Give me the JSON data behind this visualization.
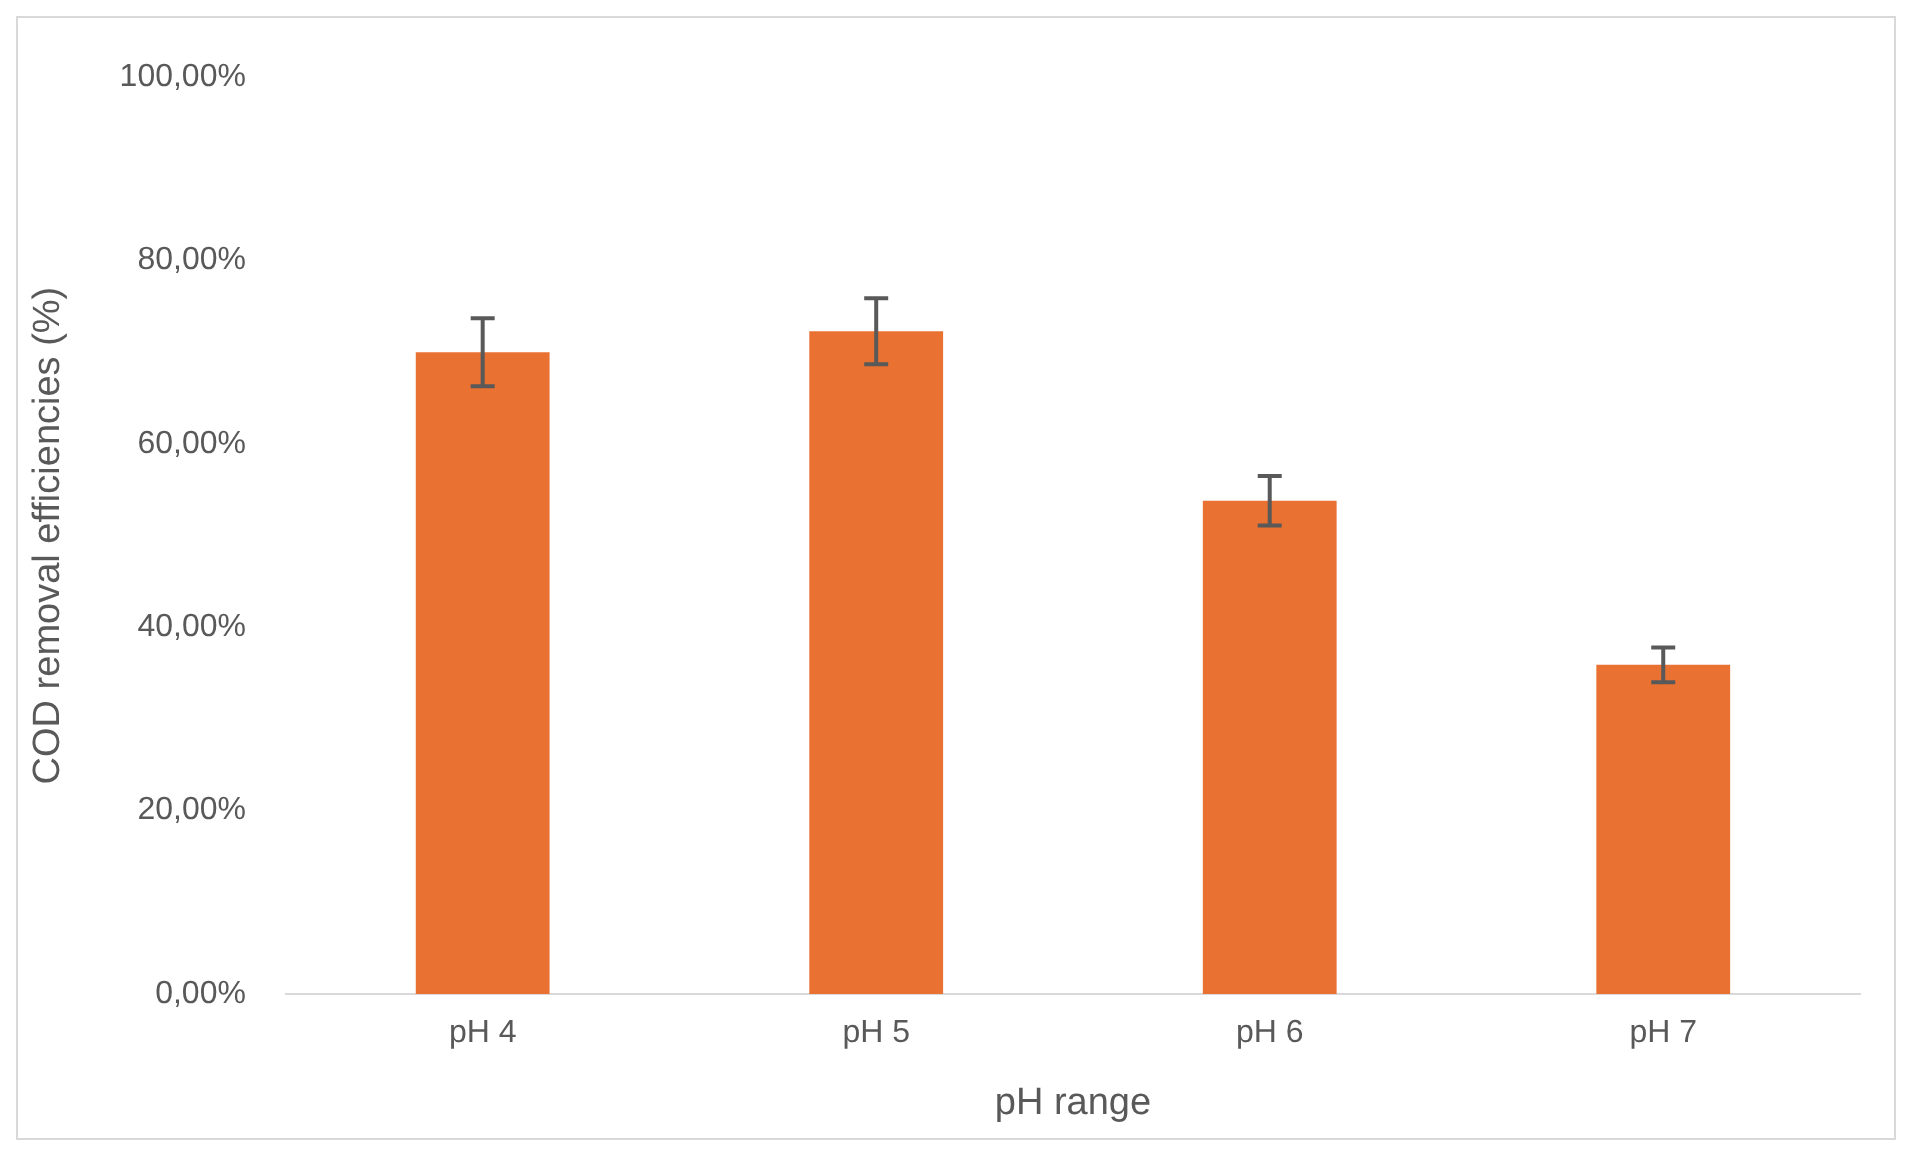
{
  "chart_data": {
    "type": "bar",
    "xlabel": "pH range",
    "ylabel": "COD removal efficiencies (%)",
    "categories": [
      "pH 4",
      "pH 5",
      "pH 6",
      "pH 7"
    ],
    "values": [
      70,
      72.3,
      53.8,
      35.9
    ],
    "errors": [
      3.7,
      3.6,
      2.7,
      1.9
    ],
    "color": "#e97132",
    "ylim": [
      0,
      100
    ],
    "yticks": [
      {
        "value": 0,
        "label": "0,00%"
      },
      {
        "value": 20,
        "label": "20,00%"
      },
      {
        "value": 40,
        "label": "40,00%"
      },
      {
        "value": 60,
        "label": "60,00%"
      },
      {
        "value": 80,
        "label": "80,00%"
      },
      {
        "value": 100,
        "label": "100,00%"
      }
    ],
    "grid": false,
    "legend": false
  }
}
